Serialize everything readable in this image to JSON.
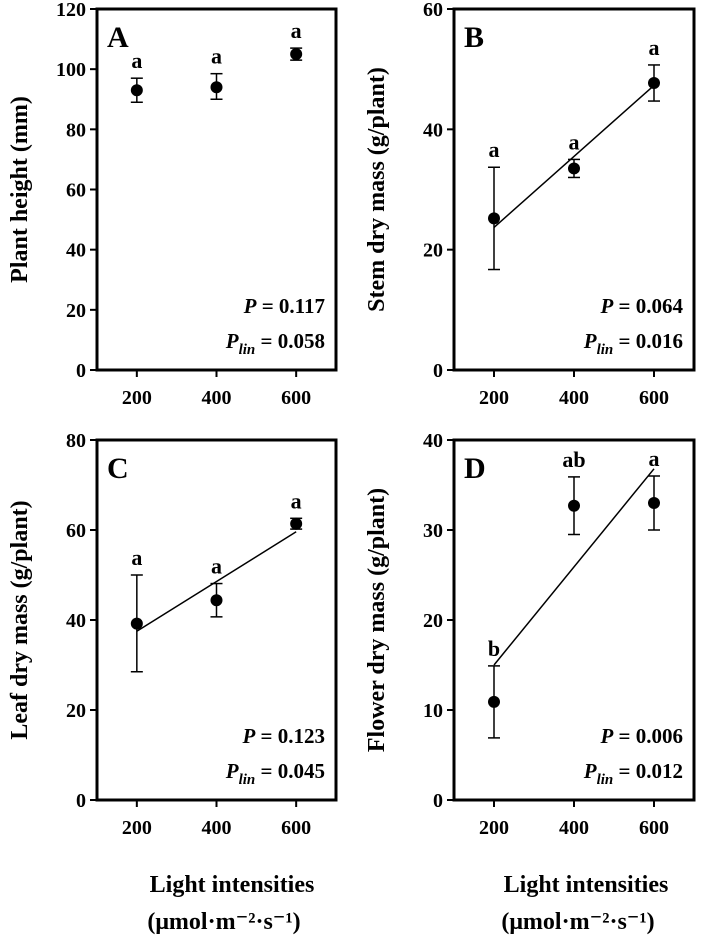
{
  "x_axis_label_line1": "Light intensities",
  "x_axis_label_line2": "(μmol·m⁻²·s⁻¹)",
  "chart_data": [
    {
      "type": "scatter",
      "panel": "A",
      "ylabel": "Plant height (mm)",
      "x": [
        200,
        400,
        600
      ],
      "xticks": [
        "200",
        "400",
        "600"
      ],
      "y": [
        93,
        94,
        105
      ],
      "error": [
        [
          89,
          97
        ],
        [
          90,
          98.5
        ],
        [
          103,
          107
        ]
      ],
      "letters": [
        "a",
        "a",
        "a"
      ],
      "ylim": [
        0,
        120
      ],
      "yticks": [
        0,
        20,
        40,
        60,
        80,
        100,
        120
      ],
      "fit_line": null,
      "stats": {
        "p_label": "P",
        "p_value": "= 0.117",
        "plin_label": "P",
        "plin_sub": "lin",
        "plin_value": "= 0.058"
      }
    },
    {
      "type": "scatter",
      "panel": "B",
      "ylabel": "Stem dry mass (g/plant)",
      "x": [
        200,
        400,
        600
      ],
      "xticks": [
        "200",
        "400",
        "600"
      ],
      "y": [
        25.2,
        33.5,
        47.7
      ],
      "error": [
        [
          16.7,
          33.7
        ],
        [
          32,
          35
        ],
        [
          44.7,
          50.7
        ]
      ],
      "letters": [
        "a",
        "a",
        "a"
      ],
      "ylim": [
        0,
        60
      ],
      "yticks": [
        0,
        20,
        40,
        60
      ],
      "fit_line": [
        [
          200,
          23.7
        ],
        [
          600,
          47.3
        ]
      ],
      "stats": {
        "p_label": "P",
        "p_value": "= 0.064",
        "plin_label": "P",
        "plin_sub": "lin",
        "plin_value": "= 0.016"
      }
    },
    {
      "type": "scatter",
      "panel": "C",
      "ylabel": "Leaf dry mass (g/plant)",
      "x": [
        200,
        400,
        600
      ],
      "xticks": [
        "200",
        "400",
        "600"
      ],
      "y": [
        39.2,
        44.4,
        61.4
      ],
      "error": [
        [
          28.5,
          50
        ],
        [
          40.7,
          48.1
        ],
        [
          60.2,
          62.6
        ]
      ],
      "letters": [
        "a",
        "a",
        "a"
      ],
      "ylim": [
        0,
        80
      ],
      "yticks": [
        0,
        20,
        40,
        60,
        80
      ],
      "fit_line": [
        [
          200,
          37.5
        ],
        [
          600,
          59.6
        ]
      ],
      "stats": {
        "p_label": "P",
        "p_value": "= 0.123",
        "plin_label": "P",
        "plin_sub": "lin",
        "plin_value": "= 0.045"
      }
    },
    {
      "type": "scatter",
      "panel": "D",
      "ylabel": "Flower dry mass (g/plant)",
      "x": [
        200,
        400,
        600
      ],
      "xticks": [
        "200",
        "400",
        "600"
      ],
      "y": [
        10.9,
        32.7,
        33.0
      ],
      "error": [
        [
          6.9,
          14.9
        ],
        [
          29.5,
          35.9
        ],
        [
          30.0,
          36.0
        ]
      ],
      "letters": [
        "b",
        "ab",
        "a"
      ],
      "ylim": [
        0,
        40
      ],
      "yticks": [
        0,
        10,
        20,
        30,
        40
      ],
      "fit_line": [
        [
          200,
          15.0
        ],
        [
          600,
          36.8
        ]
      ],
      "stats": {
        "p_label": "P",
        "p_value": "= 0.006",
        "plin_label": "P",
        "plin_sub": "lin",
        "plin_value": "= 0.012"
      }
    }
  ]
}
